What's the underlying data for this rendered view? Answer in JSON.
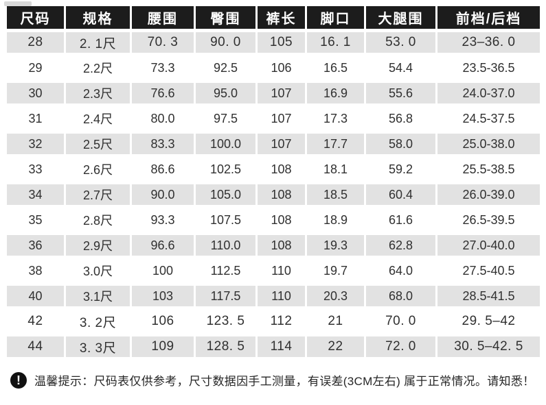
{
  "size_chart": {
    "columns": [
      "尺码",
      "规格",
      "腰围",
      "臀围",
      "裤长",
      "脚口",
      "大腿围",
      "前档/后档"
    ],
    "rows": [
      {
        "cells": [
          "28",
          "2. 1尺",
          "70. 3",
          "90. 0",
          "105",
          "16. 1",
          "53. 0",
          "23–36. 0"
        ],
        "shaded": true,
        "wide": true
      },
      {
        "cells": [
          "29",
          "2.2尺",
          "73.3",
          "92.5",
          "106",
          "16.5",
          "54.4",
          "23.5-36.5"
        ],
        "shaded": false,
        "wide": false
      },
      {
        "cells": [
          "30",
          "2.3尺",
          "76.6",
          "95.0",
          "107",
          "16.9",
          "55.6",
          "24.0-37.0"
        ],
        "shaded": true,
        "wide": false
      },
      {
        "cells": [
          "31",
          "2.4尺",
          "80.0",
          "97.5",
          "107",
          "17.3",
          "56.8",
          "24.5-37.5"
        ],
        "shaded": false,
        "wide": false
      },
      {
        "cells": [
          "32",
          "2.5尺",
          "83.3",
          "100.0",
          "107",
          "17.7",
          "58.0",
          "25.0-38.0"
        ],
        "shaded": true,
        "wide": false
      },
      {
        "cells": [
          "33",
          "2.6尺",
          "86.6",
          "102.5",
          "108",
          "18.1",
          "59.2",
          "25.5-38.5"
        ],
        "shaded": false,
        "wide": false
      },
      {
        "cells": [
          "34",
          "2.7尺",
          "90.0",
          "105.0",
          "108",
          "18.5",
          "60.4",
          "26.0-39.0"
        ],
        "shaded": true,
        "wide": false
      },
      {
        "cells": [
          "35",
          "2.8尺",
          "93.3",
          "107.5",
          "108",
          "18.9",
          "61.6",
          "26.5-39.5"
        ],
        "shaded": false,
        "wide": false
      },
      {
        "cells": [
          "36",
          "2.9尺",
          "96.6",
          "110.0",
          "108",
          "19.3",
          "62.8",
          "27.0-40.0"
        ],
        "shaded": true,
        "wide": false
      },
      {
        "cells": [
          "38",
          "3.0尺",
          "100",
          "112.5",
          "110",
          "19.7",
          "64.0",
          "27.5-40.5"
        ],
        "shaded": false,
        "wide": false
      },
      {
        "cells": [
          "40",
          "3.1尺",
          "103",
          "117.5",
          "110",
          "20.3",
          "68.0",
          "28.5-41.5"
        ],
        "shaded": true,
        "wide": false
      },
      {
        "cells": [
          "42",
          "3. 2尺",
          "106",
          "123. 5",
          "112",
          "21",
          "70. 0",
          "29. 5–42"
        ],
        "shaded": false,
        "wide": true
      },
      {
        "cells": [
          "44",
          "3. 3尺",
          "109",
          "128. 5",
          "114",
          "22",
          "72. 0",
          "30. 5–42. 5"
        ],
        "shaded": true,
        "wide": true
      }
    ]
  },
  "notice": {
    "icon_glyph": "!",
    "text": "温馨提示：尺码表仅供参考，尺寸数据因手工测量，有误差(3CM左右) 属于正常情况。请知悉！"
  },
  "colors": {
    "page_bg": "#ffffff",
    "header_bg": "#1c1c1c",
    "header_text": "#ffffff",
    "shaded_row_bg": "#e2e2e2",
    "body_text": "#303030",
    "notice_icon_bg": "#111111"
  }
}
